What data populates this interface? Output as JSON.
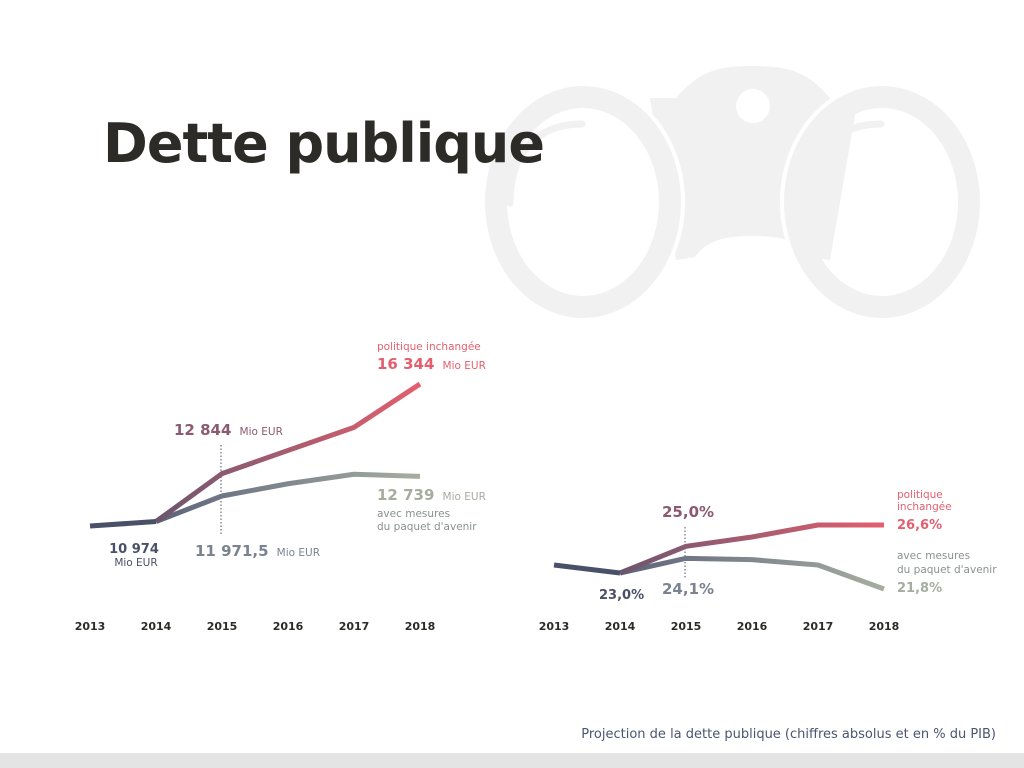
{
  "page": {
    "title": "Dette publique",
    "caption": "Projection de la dette publique (chiffres absolus et en % du PIB)"
  },
  "colors": {
    "dark": "#4a5068",
    "mauve": "#8b5a70",
    "red": "#e35f6e",
    "grey_end": "#a6ada0",
    "grey_mid": "#7b8290",
    "decoration": "#f1f1f1"
  },
  "chart_data": [
    {
      "type": "line",
      "title": "Dette publique (Mio EUR)",
      "categories": [
        "2013",
        "2014",
        "2015",
        "2016",
        "2017",
        "2018"
      ],
      "ylim": [
        10500,
        17000
      ],
      "series": [
        {
          "name": "politique inchangée",
          "values": [
            10800,
            10974,
            12844,
            13750,
            14650,
            16344
          ]
        },
        {
          "name": "avec mesures du paquet d'avenir",
          "values": [
            10800,
            10974,
            11971.5,
            12450,
            12820,
            12739
          ]
        }
      ],
      "annotations": {
        "start_value": "10 974",
        "start_unit": "Mio EUR",
        "red_2015_value": "12 844",
        "red_2015_unit": "Mio EUR",
        "grey_2015_value": "11 971,5",
        "grey_2015_unit": "Mio EUR",
        "red_end_label": "politique inchangée",
        "red_end_value": "16 344",
        "red_end_unit": "Mio EUR",
        "grey_end_value": "12 739",
        "grey_end_unit": "Mio EUR",
        "grey_end_label_1": "avec mesures",
        "grey_end_label_2": "du paquet d'avenir"
      }
    },
    {
      "type": "line",
      "title": "Dette publique (% du PIB)",
      "categories": [
        "2013",
        "2014",
        "2015",
        "2016",
        "2017",
        "2018"
      ],
      "ylim": [
        20.5,
        28
      ],
      "series": [
        {
          "name": "politique inchangée",
          "values": [
            23.6,
            23.0,
            25.0,
            25.7,
            26.6,
            26.6
          ]
        },
        {
          "name": "avec mesures du paquet d'avenir",
          "values": [
            23.6,
            23.0,
            24.1,
            24.0,
            23.6,
            21.8
          ]
        }
      ],
      "annotations": {
        "start_value": "23,0%",
        "red_2015_value": "25,0%",
        "grey_2015_value": "24,1%",
        "red_end_label_1": "politique",
        "red_end_label_2": "inchangée",
        "red_end_value": "26,6%",
        "grey_end_label_1": "avec mesures",
        "grey_end_label_2": "du paquet d'avenir",
        "grey_end_value": "21,8%"
      }
    }
  ]
}
